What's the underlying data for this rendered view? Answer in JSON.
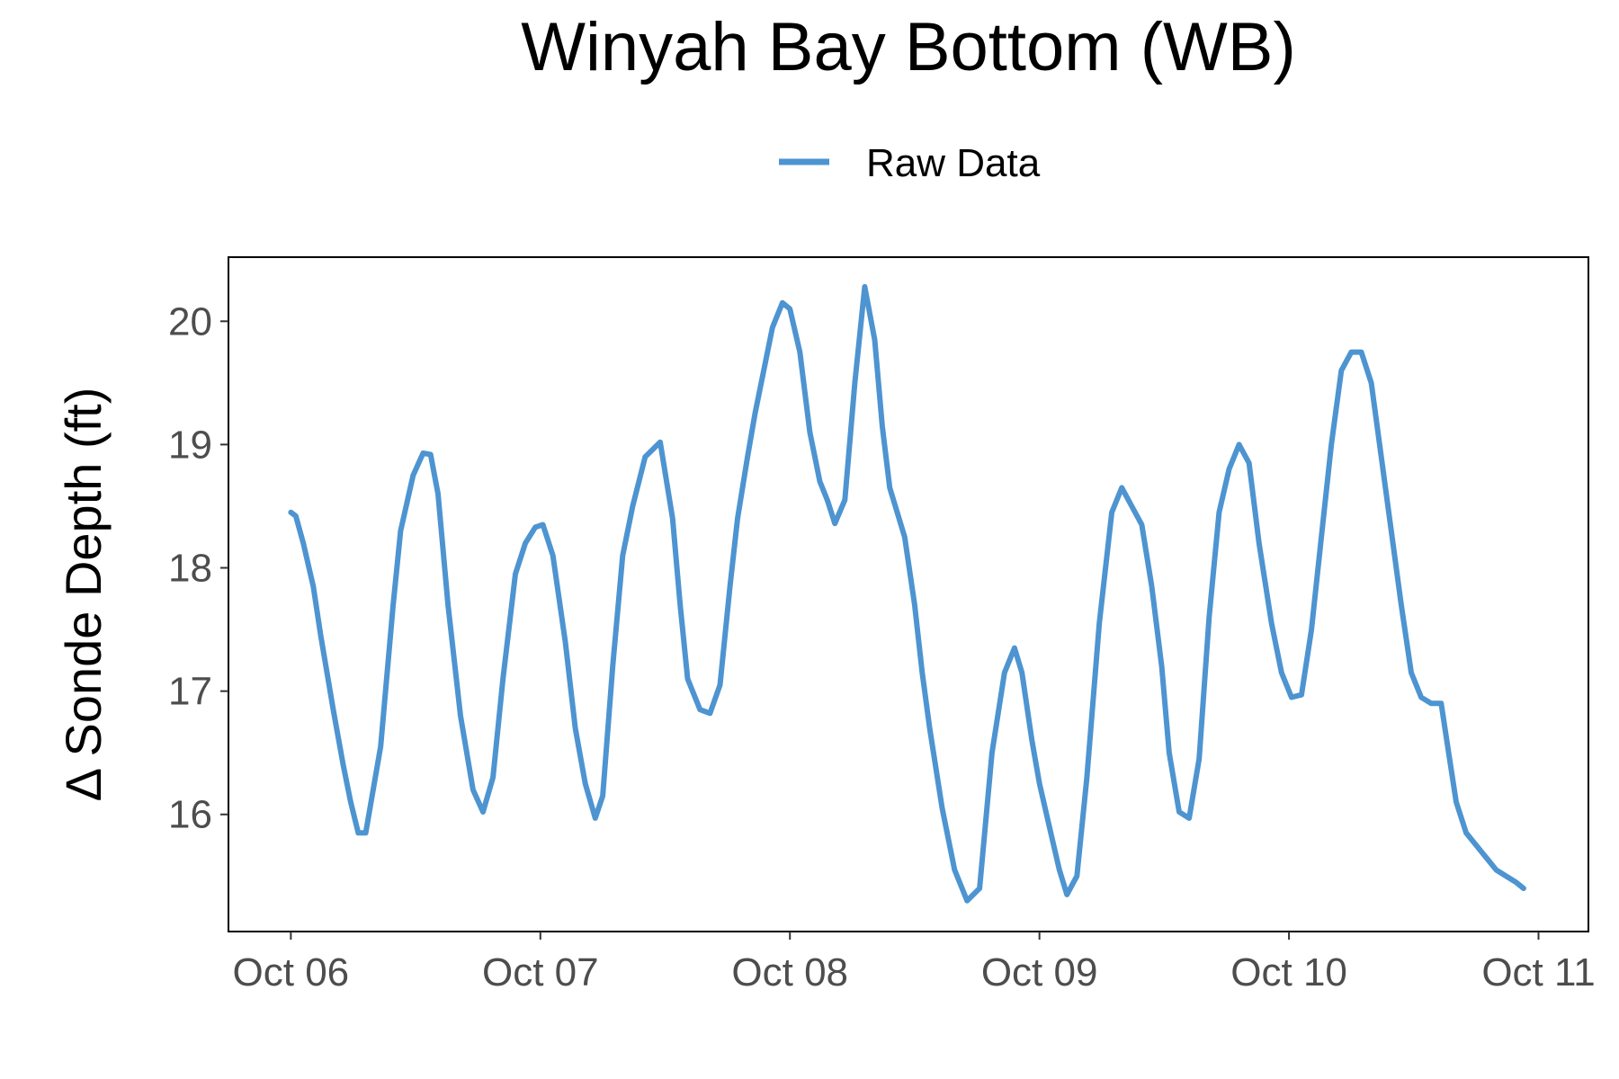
{
  "chart_data": {
    "type": "line",
    "title": "Winyah Bay Bottom (WB)",
    "xlabel": "",
    "ylabel": "Δ Sonde Depth (ft)",
    "legend": {
      "placement": "top",
      "entries": [
        "Raw Data"
      ]
    },
    "x_ticks": [
      "Oct 06",
      "Oct 07",
      "Oct 08",
      "Oct 09",
      "Oct 10",
      "Oct 11"
    ],
    "y_ticks": [
      16,
      17,
      18,
      19,
      20
    ],
    "xlim": [
      -0.25,
      5.2
    ],
    "ylim": [
      15.05,
      20.52
    ],
    "grid": false,
    "series": [
      {
        "name": "Raw Data",
        "color": "#4d94d1",
        "x": [
          0.0,
          0.02,
          0.05,
          0.09,
          0.12,
          0.17,
          0.21,
          0.24,
          0.27,
          0.3,
          0.36,
          0.41,
          0.44,
          0.49,
          0.53,
          0.56,
          0.59,
          0.63,
          0.68,
          0.73,
          0.77,
          0.81,
          0.85,
          0.9,
          0.94,
          0.98,
          1.01,
          1.05,
          1.1,
          1.14,
          1.18,
          1.22,
          1.25,
          1.29,
          1.33,
          1.37,
          1.42,
          1.48,
          1.53,
          1.56,
          1.59,
          1.64,
          1.68,
          1.72,
          1.76,
          1.79,
          1.83,
          1.86,
          1.9,
          1.93,
          1.97,
          2.0,
          2.04,
          2.08,
          2.12,
          2.15,
          2.18,
          2.22,
          2.26,
          2.3,
          2.34,
          2.37,
          2.4,
          2.43,
          2.46,
          2.5,
          2.53,
          2.56,
          2.61,
          2.66,
          2.71,
          2.76,
          2.81,
          2.86,
          2.9,
          2.93,
          2.97,
          3.0,
          3.04,
          3.08,
          3.11,
          3.15,
          3.19,
          3.24,
          3.29,
          3.33,
          3.37,
          3.41,
          3.45,
          3.49,
          3.52,
          3.56,
          3.6,
          3.64,
          3.68,
          3.72,
          3.76,
          3.8,
          3.84,
          3.88,
          3.93,
          3.97,
          4.01,
          4.05,
          4.09,
          4.13,
          4.17,
          4.21,
          4.25,
          4.29,
          4.33,
          4.37,
          4.41,
          4.45,
          4.49,
          4.53,
          4.57,
          4.61,
          4.64,
          4.67,
          4.71,
          4.75,
          4.79,
          4.83,
          4.87,
          4.91,
          4.94
        ],
        "y": [
          18.45,
          18.42,
          18.2,
          17.85,
          17.45,
          16.85,
          16.4,
          16.1,
          15.85,
          15.85,
          16.55,
          17.7,
          18.3,
          18.75,
          18.93,
          18.92,
          18.6,
          17.7,
          16.8,
          16.2,
          16.02,
          16.3,
          17.1,
          17.95,
          18.2,
          18.33,
          18.35,
          18.1,
          17.4,
          16.7,
          16.25,
          15.97,
          16.15,
          17.2,
          18.1,
          18.5,
          18.9,
          19.02,
          18.4,
          17.7,
          17.1,
          16.85,
          16.82,
          17.05,
          17.85,
          18.4,
          18.9,
          19.25,
          19.65,
          19.95,
          20.15,
          20.1,
          19.75,
          19.1,
          18.7,
          18.55,
          18.36,
          18.55,
          19.5,
          20.28,
          19.85,
          19.15,
          18.65,
          18.45,
          18.25,
          17.7,
          17.15,
          16.7,
          16.05,
          15.55,
          15.3,
          15.4,
          16.5,
          17.15,
          17.35,
          17.15,
          16.6,
          16.25,
          15.9,
          15.55,
          15.35,
          15.5,
          16.3,
          17.55,
          18.45,
          18.65,
          18.5,
          18.35,
          17.85,
          17.2,
          16.5,
          16.02,
          15.97,
          16.45,
          17.6,
          18.45,
          18.8,
          19.0,
          18.85,
          18.2,
          17.55,
          17.15,
          16.95,
          16.97,
          17.5,
          18.25,
          19.0,
          19.6,
          19.75,
          19.75,
          19.5,
          18.9,
          18.3,
          17.7,
          17.15,
          16.95,
          16.9,
          16.9,
          16.5,
          16.1,
          15.85,
          15.75,
          15.65,
          15.55,
          15.5,
          15.45,
          15.4
        ]
      }
    ]
  }
}
